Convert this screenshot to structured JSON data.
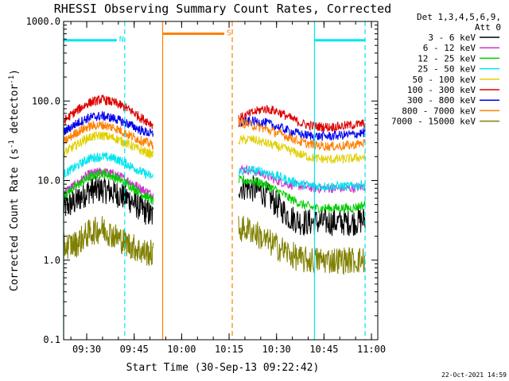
{
  "chart_data": {
    "type": "line",
    "title": "RHESSI Observing Summary Count Rates, Corrected",
    "xlabel": "Start Time (30-Sep-13 09:22:42)",
    "ylabel_main": "Corrected Count Rate (s",
    "ylabel_sup1": "-1",
    "ylabel_mid": " detector",
    "ylabel_sup2": "-1",
    "ylabel_end": ")",
    "yscale": "log",
    "ylim": [
      0.1,
      1000
    ],
    "xlim": [
      "09:22:42",
      "11:02:00"
    ],
    "x_ticks": [
      "09:30",
      "09:45",
      "10:00",
      "10:15",
      "10:30",
      "10:45",
      "11:00"
    ],
    "y_ticks": [
      "0.1",
      "1.0",
      "10.0",
      "100.0",
      "1000.0"
    ],
    "legend_header": [
      "Det 1,3,4,5,6,9,",
      "Att 0"
    ],
    "legend_position": "right",
    "series": [
      {
        "name": "3 - 6 keV",
        "color": "#000000",
        "seg1": [
          4.5,
          5.5,
          7.5,
          7.8,
          7.0,
          6.0,
          4.5,
          3.5
        ],
        "seg2": [
          8.5,
          8.0,
          7.0,
          5.0,
          3.5,
          3.0,
          3.0,
          3.0,
          3.0,
          3.0,
          3.2
        ]
      },
      {
        "name": "6 - 12 keV",
        "color": "#cc33cc",
        "seg1": [
          7.0,
          9.0,
          12.0,
          13.0,
          12.0,
          10.0,
          8.0,
          6.5
        ],
        "seg2": [
          14.0,
          13.5,
          12.0,
          10.0,
          9.0,
          8.5,
          8.0,
          8.0,
          8.0,
          8.0,
          8.5
        ]
      },
      {
        "name": "12 - 25 keV",
        "color": "#00cc00",
        "seg1": [
          6.5,
          8.5,
          11.0,
          12.5,
          11.0,
          9.0,
          7.0,
          5.5
        ],
        "seg2": [
          10.0,
          10.0,
          9.0,
          7.5,
          6.0,
          5.0,
          4.5,
          4.5,
          4.5,
          4.5,
          5.0
        ]
      },
      {
        "name": "25 - 50 keV",
        "color": "#00e5ee",
        "seg1": [
          12.0,
          15.0,
          19.0,
          20.0,
          19.0,
          16.0,
          13.0,
          11.0
        ],
        "seg2": [
          13.0,
          13.5,
          13.0,
          11.5,
          10.0,
          9.0,
          8.5,
          8.5,
          8.5,
          8.5,
          9.0
        ]
      },
      {
        "name": "50 - 100 keV",
        "color": "#e0d000",
        "seg1": [
          22.0,
          28.0,
          35.0,
          37.0,
          34.0,
          29.0,
          24.0,
          21.0
        ],
        "seg2": [
          32.0,
          33.0,
          30.0,
          27.0,
          24.0,
          21.0,
          19.0,
          18.5,
          18.5,
          19.0,
          20.0
        ]
      },
      {
        "name": "100 - 300 keV",
        "color": "#dd0000",
        "seg1": [
          55.0,
          75.0,
          95.0,
          105.0,
          95.0,
          80.0,
          62.0,
          50.0
        ],
        "seg2": [
          60.0,
          70.0,
          80.0,
          75.0,
          62.0,
          52.0,
          48.0,
          47.0,
          48.0,
          50.0,
          52.0
        ]
      },
      {
        "name": "300 - 800 keV",
        "color": "#0000ee",
        "seg1": [
          40.0,
          52.0,
          62.0,
          65.0,
          60.0,
          52.0,
          43.0,
          38.0
        ],
        "seg2": [
          52.0,
          56.0,
          54.0,
          48.0,
          42.0,
          38.0,
          36.0,
          36.0,
          37.0,
          38.0,
          40.0
        ]
      },
      {
        "name": "800 - 7000 keV",
        "color": "#ff8000",
        "seg1": [
          30.0,
          40.0,
          48.0,
          50.0,
          46.0,
          38.0,
          32.0,
          28.0
        ],
        "seg2": [
          54.0,
          50.0,
          45.0,
          40.0,
          35.0,
          30.0,
          28.0,
          27.0,
          27.0,
          28.0,
          30.0
        ]
      },
      {
        "name": "7000 - 15000 keV",
        "color": "#808000",
        "seg1": [
          1.5,
          1.6,
          2.2,
          2.5,
          2.0,
          1.6,
          1.3,
          1.2
        ],
        "seg2": [
          2.5,
          2.4,
          1.8,
          1.5,
          1.2,
          1.0,
          1.0,
          1.0,
          1.0,
          1.0,
          1.0
        ]
      }
    ],
    "segments": [
      {
        "start": "09:22:42",
        "end": "09:51:00"
      },
      {
        "start": "10:18:00",
        "end": "10:58:00"
      }
    ],
    "markers": [
      {
        "label": "N",
        "color": "#00e5ee",
        "start": "09:22:42",
        "end": "09:42:00",
        "bar": 580
      },
      {
        "label": "S",
        "color": "#ff8000",
        "start": "09:54:00",
        "end": "10:16:00",
        "bar": 700
      },
      {
        "label": "",
        "color": "#00e5ee",
        "start": "10:42:00",
        "end": "10:58:00",
        "bar": 580
      }
    ]
  },
  "footer_date": "22-Oct-2021 14:59"
}
